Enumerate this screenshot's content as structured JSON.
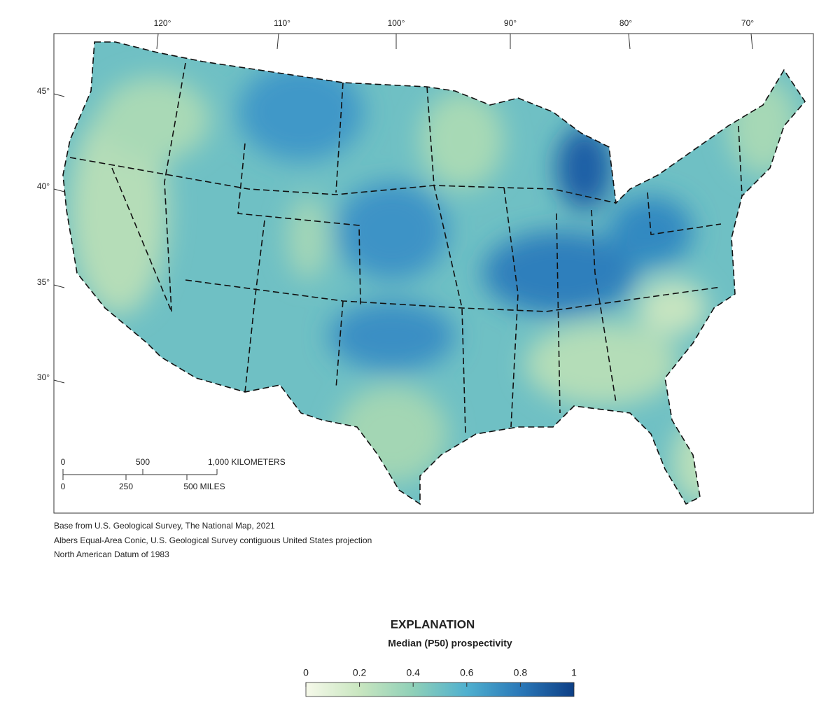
{
  "graticule": {
    "longitude_labels": [
      "120°",
      "110°",
      "100°",
      "90°",
      "80°",
      "70°"
    ],
    "latitude_labels": [
      "45°",
      "40°",
      "35°",
      "30°"
    ]
  },
  "scale_bar": {
    "kilometer_labels": [
      "0",
      "500",
      "1,000 KILOMETERS"
    ],
    "mile_labels": [
      "0",
      "250",
      "500 MILES"
    ]
  },
  "credits": [
    "Base from U.S. Geological Survey, The National Map, 2021",
    "Albers Equal-Area Conic, U.S. Geological Survey contiguous United States projection",
    "North American Datum of 1983"
  ],
  "legend": {
    "title": "EXPLANATION",
    "subtitle": "Median (P50) prospectivity",
    "lim": [
      0,
      1
    ],
    "ticks": [
      0,
      0.2,
      0.4,
      0.6,
      0.8,
      1
    ],
    "colors": [
      "#f6f9ea",
      "#c9e6c0",
      "#8fd0b8",
      "#4fb0cf",
      "#2a78b8",
      "#0d3f86"
    ]
  }
}
